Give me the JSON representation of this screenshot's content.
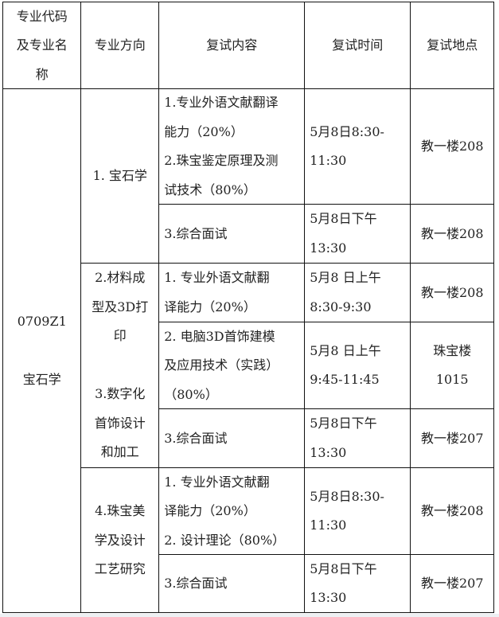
{
  "header": {
    "major": "专业代码\n及专业名\n称",
    "direction": "专业方向",
    "content": "复试内容",
    "time": "复试时间",
    "location": "复试地点"
  },
  "major": "0709Z1\n\n宝石学",
  "groups": [
    {
      "direction": "1. 宝石学",
      "rows": [
        {
          "content": "1.专业外语文献翻译\n能力（20%）\n2.珠宝鉴定原理及测\n试技术（80%）",
          "time": "5月8日8:30-\n11:30",
          "location": "教一楼208"
        },
        {
          "content": "3.综合面试",
          "time": "5月8日下午\n13:30",
          "location": "教一楼208"
        }
      ]
    },
    {
      "direction": "2.材料成\n型及3D打\n印\n\n3.数字化\n首饰设计\n和加工",
      "rows": [
        {
          "content": "1.  专业外语文献翻\n译能力（20%）",
          "time": "5月8  日上午\n8:30-9:30",
          "location": "教一楼208"
        },
        {
          "content": "2.  电脑3D首饰建模\n及应用技术（实践）\n（80%）",
          "time": "5月8  日上午\n9:45-11:45",
          "location": "珠宝楼\n1015"
        },
        {
          "content": "3.综合面试",
          "time": "5月8日下午\n13:30",
          "location": "教一楼207"
        }
      ]
    },
    {
      "direction": "4.珠宝美\n学及设计\n工艺研究",
      "rows": [
        {
          "content": "1.  专业外语文献翻\n译能力（20%）\n2.  设计理论（80%）",
          "time": "5月8日8:30-\n11:30",
          "location": "教一楼208"
        },
        {
          "content": "3.综合面试",
          "time": "5月8日下午\n13:30",
          "location": "教一楼207"
        }
      ]
    }
  ]
}
